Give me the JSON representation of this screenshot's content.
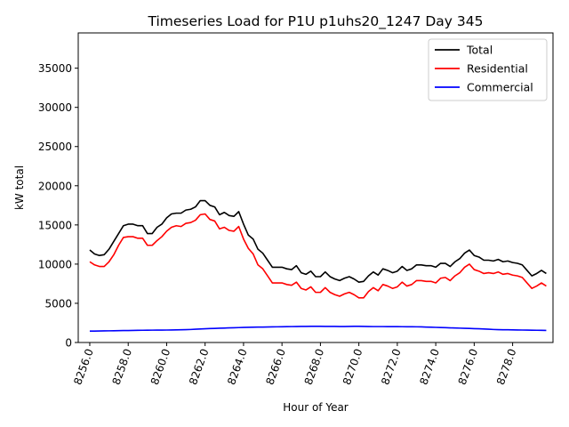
{
  "chart_data": {
    "type": "line",
    "title": "Timeseries Load for P1U p1uhs20_1247  Day 345",
    "xlabel": "Hour of Year",
    "ylabel": "kW total",
    "xlim": [
      8255.4,
      8280.1
    ],
    "ylim": [
      0,
      39500
    ],
    "x_ticks": [
      8256,
      8258,
      8260,
      8262,
      8264,
      8266,
      8268,
      8270,
      8272,
      8274,
      8276,
      8278
    ],
    "x_tick_labels": [
      "8256.0",
      "8258.0",
      "8260.0",
      "8262.0",
      "8264.0",
      "8266.0",
      "8268.0",
      "8270.0",
      "8272.0",
      "8274.0",
      "8276.0",
      "8278.0"
    ],
    "y_ticks": [
      0,
      5000,
      10000,
      15000,
      20000,
      25000,
      30000,
      35000
    ],
    "y_tick_labels": [
      "0",
      "5000",
      "10000",
      "15000",
      "20000",
      "25000",
      "30000",
      "35000"
    ],
    "legend_position": "top-right",
    "x_start": 8256.0,
    "x_step": 0.25,
    "series": [
      {
        "name": "Total",
        "color": "#000000",
        "values": [
          11800,
          11300,
          11100,
          11200,
          11900,
          12900,
          13900,
          14900,
          15100,
          15100,
          14900,
          14900,
          13900,
          13900,
          14700,
          15100,
          15900,
          16400,
          16500,
          16500,
          16900,
          17000,
          17300,
          18100,
          18100,
          17500,
          17300,
          16300,
          16600,
          16200,
          16100,
          16700,
          15100,
          13700,
          13200,
          11900,
          11400,
          10500,
          9600,
          9600,
          9600,
          9400,
          9300,
          9800,
          8900,
          8700,
          9100,
          8400,
          8400,
          9000,
          8400,
          8100,
          7900,
          8200,
          8400,
          8100,
          7700,
          7800,
          8500,
          9000,
          8600,
          9400,
          9200,
          8900,
          9100,
          9700,
          9200,
          9400,
          9900,
          9900,
          9800,
          9800,
          9600,
          10100,
          10100,
          9700,
          10300,
          10700,
          11400,
          11800,
          11100,
          10900,
          10500,
          10500,
          10400,
          10600,
          10300,
          10400,
          10200,
          10100,
          9900,
          9200,
          8500,
          8800,
          9200,
          8800
        ]
      },
      {
        "name": "Residential",
        "color": "#ff0000",
        "values": [
          10300,
          9900,
          9700,
          9700,
          10300,
          11200,
          12400,
          13400,
          13500,
          13500,
          13300,
          13300,
          12400,
          12400,
          13000,
          13500,
          14200,
          14700,
          14900,
          14800,
          15200,
          15300,
          15600,
          16300,
          16400,
          15700,
          15500,
          14500,
          14700,
          14300,
          14200,
          14800,
          13200,
          12000,
          11300,
          9900,
          9400,
          8500,
          7600,
          7600,
          7600,
          7400,
          7300,
          7700,
          6900,
          6700,
          7100,
          6400,
          6400,
          7000,
          6400,
          6100,
          5900,
          6200,
          6400,
          6100,
          5700,
          5700,
          6500,
          7000,
          6600,
          7400,
          7200,
          6900,
          7100,
          7700,
          7200,
          7400,
          7900,
          7900,
          7800,
          7800,
          7600,
          8200,
          8300,
          7900,
          8500,
          8900,
          9600,
          10000,
          9300,
          9100,
          8800,
          8900,
          8800,
          9000,
          8700,
          8800,
          8600,
          8500,
          8300,
          7600,
          6900,
          7200,
          7600,
          7200
        ]
      },
      {
        "name": "Commercial",
        "color": "#0000ff",
        "values": [
          1450,
          1460,
          1470,
          1480,
          1490,
          1500,
          1510,
          1520,
          1530,
          1540,
          1550,
          1560,
          1570,
          1575,
          1580,
          1585,
          1590,
          1600,
          1610,
          1620,
          1640,
          1660,
          1690,
          1720,
          1750,
          1780,
          1800,
          1820,
          1840,
          1860,
          1880,
          1900,
          1920,
          1940,
          1950,
          1960,
          1970,
          1980,
          1990,
          2000,
          2010,
          2020,
          2030,
          2040,
          2050,
          2055,
          2060,
          2060,
          2060,
          2055,
          2050,
          2045,
          2040,
          2040,
          2050,
          2060,
          2060,
          2050,
          2040,
          2030,
          2030,
          2030,
          2025,
          2020,
          2020,
          2015,
          2010,
          2005,
          2000,
          1990,
          1970,
          1950,
          1930,
          1910,
          1890,
          1870,
          1850,
          1830,
          1810,
          1790,
          1770,
          1750,
          1720,
          1690,
          1660,
          1640,
          1630,
          1620,
          1610,
          1600,
          1590,
          1580,
          1570,
          1560,
          1550,
          1540
        ]
      }
    ]
  }
}
